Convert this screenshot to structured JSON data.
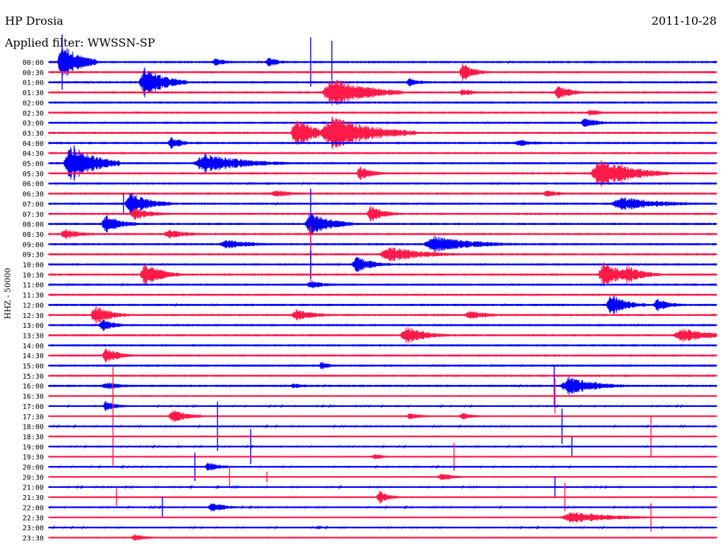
{
  "header": {
    "station": "HP Drosia",
    "date": "2011-10-28",
    "filter": "Applied filter: WWSSN-SP"
  },
  "scale_label": "HHZ - 50000",
  "trace_colors": [
    "#0000ff",
    "#ff1a4a"
  ],
  "time_labels": [
    "00:00",
    "00:30",
    "01:00",
    "01:30",
    "02:00",
    "02:30",
    "03:00",
    "03:30",
    "04:00",
    "04:30",
    "05:00",
    "05:30",
    "06:00",
    "06:30",
    "07:00",
    "07:30",
    "08:00",
    "08:30",
    "09:00",
    "09:30",
    "10:00",
    "10:30",
    "11:00",
    "11:30",
    "12:00",
    "12:30",
    "13:00",
    "13:30",
    "14:00",
    "14:30",
    "15:00",
    "15:30",
    "16:00",
    "16:30",
    "17:00",
    "17:30",
    "18:00",
    "18:30",
    "19:00",
    "19:30",
    "20:00",
    "20:30",
    "21:00",
    "21:30",
    "22:00",
    "22:30",
    "23:00",
    "23:30"
  ]
}
